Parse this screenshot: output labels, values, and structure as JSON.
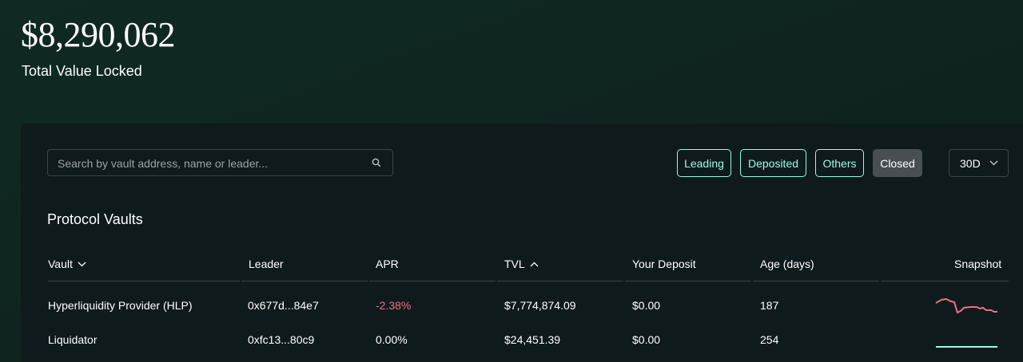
{
  "hero": {
    "value": "$8,290,062",
    "label": "Total Value Locked"
  },
  "search": {
    "placeholder": "Search by vault address, name or leader...",
    "icon": "search-icon"
  },
  "filters": [
    {
      "label": "Leading"
    },
    {
      "label": "Deposited"
    },
    {
      "label": "Others"
    },
    {
      "label": "Closed"
    }
  ],
  "range": {
    "value": "30D",
    "icon": "chevron-down-icon"
  },
  "section": {
    "title": "Protocol Vaults"
  },
  "table": {
    "headers": {
      "vault": "Vault",
      "leader": "Leader",
      "apr": "APR",
      "tvl": "TVL",
      "deposit": "Your Deposit",
      "age": "Age (days)",
      "snapshot": "Snapshot"
    },
    "rows": [
      {
        "vault": "Hyperliquidity Provider (HLP)",
        "leader": "0x677d...84e7",
        "apr": "-2.38%",
        "tvl": "$7,774,874.09",
        "deposit": "$0.00",
        "age": "187"
      },
      {
        "vault": "Liquidator",
        "leader": "0xfc13...80c9",
        "apr": "0.00%",
        "tvl": "$24,451.39",
        "deposit": "$0.00",
        "age": "254"
      }
    ]
  },
  "colors": {
    "accent": "#97fce4",
    "negative": "#ed7088",
    "panel": "#0f1a1d"
  }
}
